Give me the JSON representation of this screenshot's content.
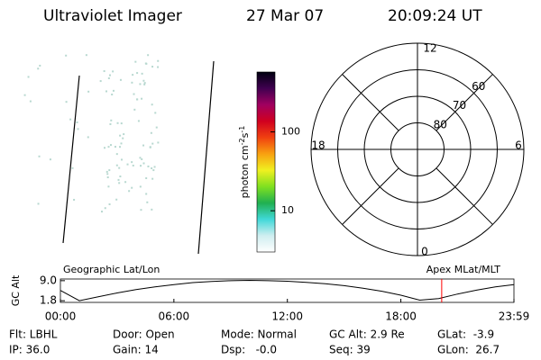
{
  "header": {
    "title": "Ultraviolet Imager",
    "date": "27 Mar 07",
    "time": "20:09:24 UT"
  },
  "colorbar": {
    "label": [
      "photon cm",
      "-2",
      "s",
      "-1"
    ],
    "log_scale": true,
    "clim": [
      3,
      575
    ],
    "ticks": [
      10,
      100
    ],
    "colors": [
      "#ffffff",
      "#cfeef0",
      "#40d8d8",
      "#20b050",
      "#80e020",
      "#f0f020",
      "#f8a010",
      "#f04010",
      "#d00020",
      "#a00060",
      "#400050",
      "#000010"
    ]
  },
  "polar": {
    "lat_min": 50,
    "rings": [
      80,
      70,
      60
    ],
    "mlt_labels": [
      "12",
      "6",
      "0",
      "18"
    ]
  },
  "timeline": {
    "left_label": "Geographic Lat/Lon",
    "right_label": "Apex MLat/MLT",
    "y_label": "GC Alt",
    "ylim": [
      1.2,
      9.6
    ],
    "yticks": [
      {
        "value": 9.0,
        "label": "9.0"
      },
      {
        "value": 1.8,
        "label": "1.8"
      }
    ],
    "xlim": [
      0,
      23.98
    ],
    "xticks": [
      {
        "value": 0,
        "label": "00:00"
      },
      {
        "value": 6,
        "label": "06:00"
      },
      {
        "value": 12,
        "label": "12:00"
      },
      {
        "value": 18,
        "label": "18:00"
      },
      {
        "value": 23.98,
        "label": "23:59"
      }
    ],
    "x": [
      0,
      1,
      2,
      3,
      4,
      5,
      6,
      7,
      8,
      9,
      10,
      11,
      12,
      13,
      14,
      15,
      16,
      17,
      18,
      19,
      20,
      21,
      22,
      23,
      23.98
    ],
    "alt": [
      5.5,
      1.8,
      3.2,
      4.6,
      5.8,
      6.8,
      7.6,
      8.3,
      8.7,
      9.0,
      9.1,
      9.0,
      8.8,
      8.4,
      7.9,
      7.2,
      6.3,
      5.2,
      3.8,
      2.0,
      2.6,
      4.2,
      5.6,
      6.8,
      7.6
    ],
    "marker_hour": 20.16,
    "marker_color": "#ff0000"
  },
  "footer": [
    [
      "Flt: LBHL",
      "Door: Open",
      "Mode: Normal",
      "GC Alt: 2.9 Re",
      "GLat:  -3.9"
    ],
    [
      "IP: 36.0",
      "Gain: 14",
      "Dsp:   -0.0",
      "Seq: 39",
      "GLon:  26.7"
    ]
  ]
}
